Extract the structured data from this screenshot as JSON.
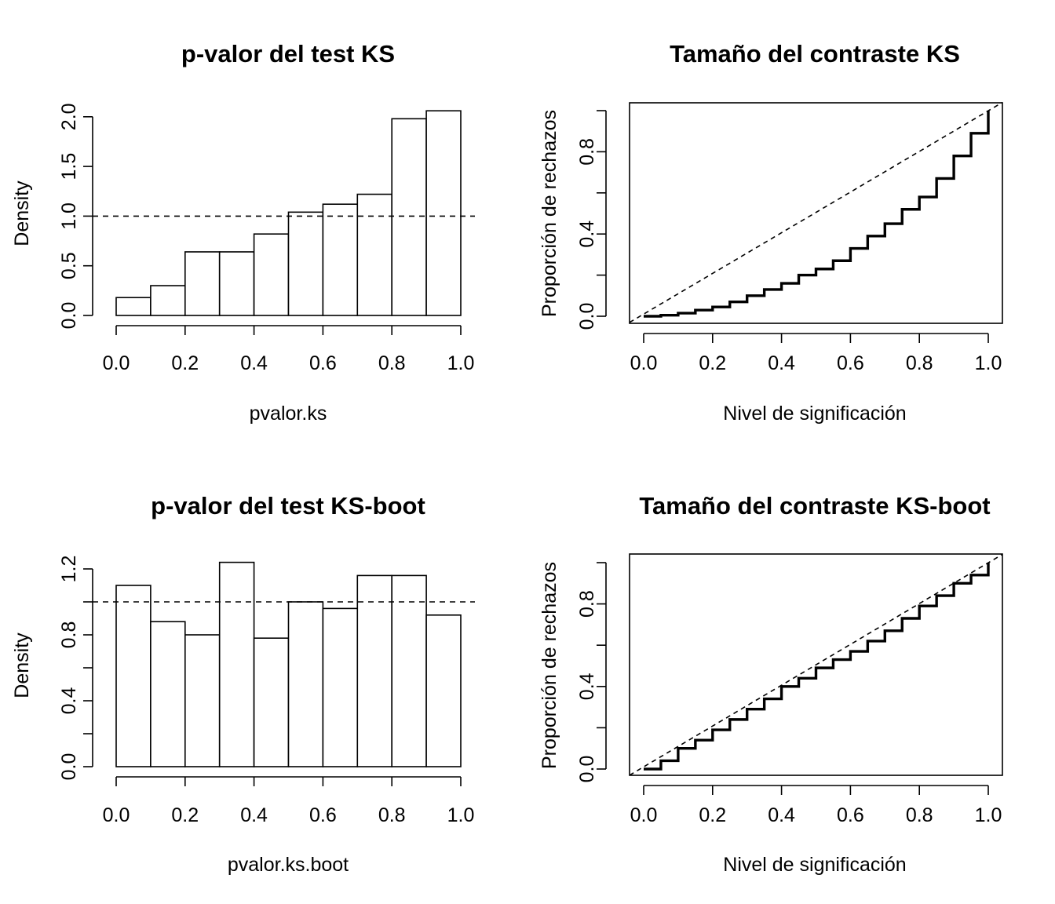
{
  "chart_data": [
    {
      "type": "bar",
      "title": "p-valor del test KS",
      "xlabel": "pvalor.ks",
      "ylabel": "Density",
      "xlim": [
        0,
        1
      ],
      "ylim": [
        0,
        2.05
      ],
      "xticks": [
        "0.0",
        "0.2",
        "0.4",
        "0.6",
        "0.8",
        "1.0"
      ],
      "yticks": [
        "0.0",
        "0.5",
        "1.0",
        "1.5",
        "2.0"
      ],
      "bins": [
        [
          0,
          0.1
        ],
        [
          0.1,
          0.2
        ],
        [
          0.2,
          0.3
        ],
        [
          0.3,
          0.4
        ],
        [
          0.4,
          0.5
        ],
        [
          0.5,
          0.6
        ],
        [
          0.6,
          0.7
        ],
        [
          0.7,
          0.8
        ],
        [
          0.8,
          0.9
        ],
        [
          0.9,
          1.0
        ]
      ],
      "values": [
        0.18,
        0.3,
        0.64,
        0.64,
        0.82,
        1.04,
        1.12,
        1.22,
        1.98,
        2.06
      ],
      "reference_line": {
        "y": 1,
        "style": "dashed"
      }
    },
    {
      "type": "line",
      "title": "Tamaño del contraste KS",
      "xlabel": "Nivel de significación",
      "ylabel": "Proporción de rechazos",
      "xlim": [
        0,
        1
      ],
      "ylim": [
        0,
        1
      ],
      "xticks": [
        "0.0",
        "0.2",
        "0.4",
        "0.6",
        "0.8",
        "1.0"
      ],
      "yticks": [
        "0.0",
        "0.4",
        "0.8"
      ],
      "series": [
        {
          "style": "step",
          "x": [
            0,
            0.05,
            0.1,
            0.15,
            0.2,
            0.25,
            0.3,
            0.35,
            0.4,
            0.45,
            0.5,
            0.55,
            0.6,
            0.65,
            0.7,
            0.75,
            0.8,
            0.85,
            0.9,
            0.95,
            1.0
          ],
          "y": [
            0,
            0.005,
            0.015,
            0.03,
            0.045,
            0.07,
            0.1,
            0.13,
            0.16,
            0.2,
            0.23,
            0.27,
            0.33,
            0.39,
            0.45,
            0.52,
            0.58,
            0.67,
            0.78,
            0.89,
            1.0
          ]
        }
      ],
      "reference_line": {
        "type": "diagonal",
        "style": "dashed"
      }
    },
    {
      "type": "bar",
      "title": "p-valor del test KS-boot",
      "xlabel": "pvalor.ks.boot",
      "ylabel": "Density",
      "xlim": [
        0,
        1
      ],
      "ylim": [
        0,
        1.25
      ],
      "xticks": [
        "0.0",
        "0.2",
        "0.4",
        "0.6",
        "0.8",
        "1.0"
      ],
      "yticks": [
        "0.0",
        "0.4",
        "0.8",
        "1.2"
      ],
      "bins": [
        [
          0,
          0.1
        ],
        [
          0.1,
          0.2
        ],
        [
          0.2,
          0.3
        ],
        [
          0.3,
          0.4
        ],
        [
          0.4,
          0.5
        ],
        [
          0.5,
          0.6
        ],
        [
          0.6,
          0.7
        ],
        [
          0.7,
          0.8
        ],
        [
          0.8,
          0.9
        ],
        [
          0.9,
          1.0
        ]
      ],
      "values": [
        1.1,
        0.88,
        0.8,
        1.24,
        0.78,
        1.0,
        0.96,
        1.16,
        1.16,
        0.92
      ],
      "reference_line": {
        "y": 1,
        "style": "dashed"
      }
    },
    {
      "type": "line",
      "title": "Tamaño del contraste KS-boot",
      "xlabel": "Nivel de significación",
      "ylabel": "Proporción de rechazos",
      "xlim": [
        0,
        1
      ],
      "ylim": [
        0,
        1
      ],
      "xticks": [
        "0.0",
        "0.2",
        "0.4",
        "0.6",
        "0.8",
        "1.0"
      ],
      "yticks": [
        "0.0",
        "0.4",
        "0.8"
      ],
      "series": [
        {
          "style": "step",
          "x": [
            0,
            0.05,
            0.1,
            0.15,
            0.2,
            0.25,
            0.3,
            0.35,
            0.4,
            0.45,
            0.5,
            0.55,
            0.6,
            0.65,
            0.7,
            0.75,
            0.8,
            0.85,
            0.9,
            0.95,
            1.0
          ],
          "y": [
            0,
            0.04,
            0.1,
            0.14,
            0.19,
            0.24,
            0.29,
            0.34,
            0.4,
            0.44,
            0.49,
            0.53,
            0.57,
            0.62,
            0.67,
            0.73,
            0.79,
            0.84,
            0.9,
            0.94,
            1.0
          ]
        }
      ],
      "reference_line": {
        "type": "diagonal",
        "style": "dashed"
      }
    }
  ]
}
